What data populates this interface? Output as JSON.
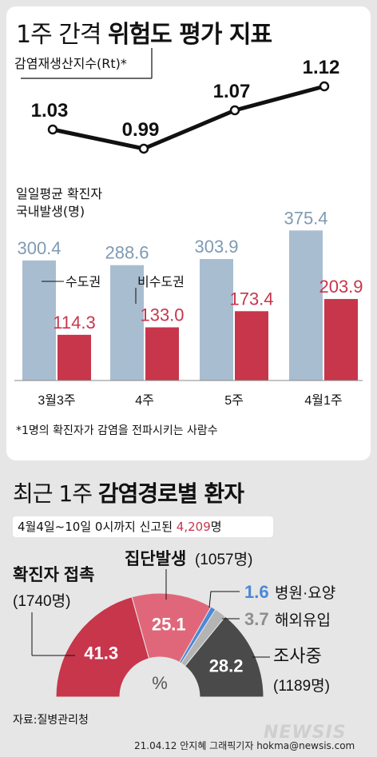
{
  "header": {
    "title_normal": "1주 간격 ",
    "title_bold": "위험도 평가 지표"
  },
  "rt_label": "감염재생산지수(Rt)*",
  "daily_label_line1": "일일평균 확진자",
  "daily_label_line2": "국내발생(명)",
  "footnote": "*1명의 확진자가 감염을 전파시키는 사람수",
  "section2": {
    "title_normal": "최근 1주 ",
    "title_bold": "감염경로별 환자",
    "cases_prefix": "4월4일~10일 0시까지 신고된 ",
    "cases_number": "4,209",
    "cases_suffix": "명",
    "percent_sign": "%"
  },
  "source": "자료:질병관리청",
  "credit": "21.04.12 안지혜 그래픽기자  hokma@newsis.com",
  "watermark": "NEWSIS",
  "colors": {
    "capital": "#a9bdd0",
    "noncapital": "#c7364b",
    "contact": "#c7364b",
    "cluster": "#e0677a",
    "hospital": "#4b88d6",
    "overseas": "#b4b4b4",
    "investigating": "#4a4a4a"
  },
  "chart_data": [
    {
      "type": "line",
      "x": [
        "3월3주",
        "4주",
        "5주",
        "4월1주"
      ],
      "values": [
        1.03,
        0.99,
        1.07,
        1.12
      ],
      "value_labels": [
        "1.03",
        "0.99",
        "1.07",
        "1.12"
      ]
    },
    {
      "type": "bar",
      "categories": [
        "3월3주",
        "4주",
        "5주",
        "4월1주"
      ],
      "series": [
        {
          "name": "수도권",
          "values": [
            300.4,
            288.6,
            303.9,
            375.4
          ],
          "labels": [
            "300.4",
            "288.6",
            "303.9",
            "375.4"
          ]
        },
        {
          "name": "비수도권",
          "values": [
            114.3,
            133.0,
            173.4,
            203.9
          ],
          "labels": [
            "114.3",
            "133.0",
            "173.4",
            "203.9"
          ]
        }
      ]
    },
    {
      "type": "pie",
      "title": "감염경로별 환자",
      "slices": [
        {
          "name": "확진자 접촉",
          "value": 41.3,
          "label": "41.3",
          "count": "(1740명)",
          "color": "#c7364b"
        },
        {
          "name": "집단발생",
          "value": 25.1,
          "label": "25.1",
          "count": "(1057명)",
          "color": "#e0677a"
        },
        {
          "name": "병원·요양",
          "value": 1.6,
          "label": "1.6",
          "color": "#4b88d6"
        },
        {
          "name": "해외유입",
          "value": 3.7,
          "label": "3.7",
          "color": "#b4b4b4"
        },
        {
          "name": "조사중",
          "value": 28.2,
          "label": "28.2",
          "count": "(1189명)",
          "color": "#4a4a4a"
        }
      ]
    }
  ]
}
